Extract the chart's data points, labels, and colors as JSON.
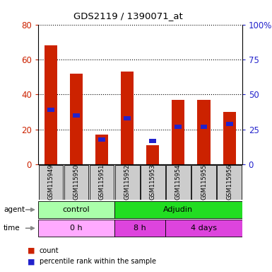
{
  "title": "GDS2119 / 1390071_at",
  "samples": [
    "GSM115949",
    "GSM115950",
    "GSM115951",
    "GSM115952",
    "GSM115953",
    "GSM115954",
    "GSM115955",
    "GSM115956"
  ],
  "count_values": [
    68,
    52,
    17,
    53,
    11,
    37,
    37,
    30
  ],
  "percentile_values": [
    39,
    35,
    18,
    33,
    17,
    27,
    27,
    29
  ],
  "ylim_left": [
    0,
    80
  ],
  "ylim_right": [
    0,
    100
  ],
  "yticks_left": [
    0,
    20,
    40,
    60,
    80
  ],
  "yticks_right": [
    0,
    25,
    50,
    75,
    100
  ],
  "ytick_labels_right": [
    "0",
    "25",
    "50",
    "75",
    "100%"
  ],
  "bar_color_red": "#cc2200",
  "bar_color_blue": "#2222cc",
  "bar_width": 0.5,
  "agent_colors": [
    "#aaffaa",
    "#22dd22"
  ],
  "time_light": "#ffaaff",
  "time_dark": "#dd44dd",
  "bg_color": "#ffffff",
  "sample_bg_color": "#cccccc",
  "legend_count_label": "count",
  "legend_pct_label": "percentile rank within the sample"
}
